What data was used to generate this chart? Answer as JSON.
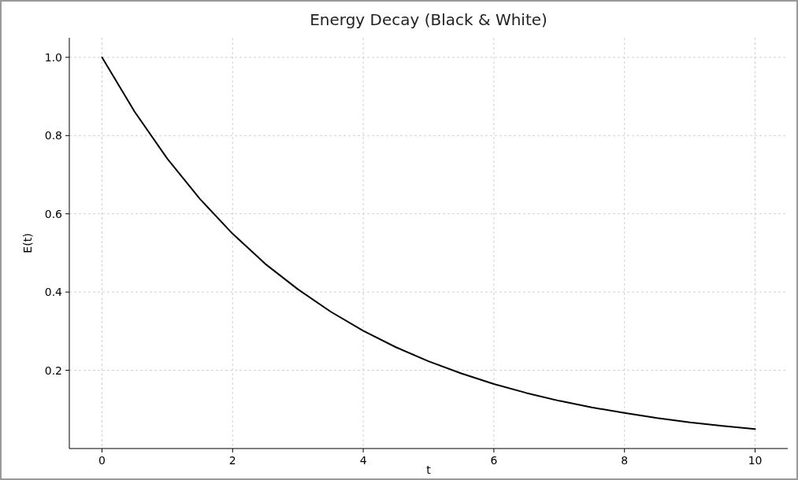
{
  "chart_data": {
    "type": "line",
    "title": "Energy Decay (Black & White)",
    "xlabel": "t",
    "ylabel": "E(t)",
    "x": [
      0,
      0.5,
      1,
      1.5,
      2,
      2.5,
      3,
      3.5,
      4,
      4.5,
      5,
      5.5,
      6,
      6.5,
      7,
      7.5,
      8,
      8.5,
      9,
      9.5,
      10
    ],
    "series": [
      {
        "color": "#000000",
        "values": [
          1,
          0.861,
          0.741,
          0.638,
          0.549,
          0.472,
          0.407,
          0.35,
          0.301,
          0.259,
          0.223,
          0.192,
          0.165,
          0.142,
          0.122,
          0.105,
          0.091,
          0.078,
          0.067,
          0.058,
          0.05
        ]
      }
    ],
    "xlim": [
      -0.5,
      10.5
    ],
    "xticks": [
      0,
      2,
      4,
      6,
      8,
      10
    ],
    "ylim": [
      0,
      1.05
    ],
    "yticks": [
      {
        "value": 0.2,
        "label": "0.2"
      },
      {
        "value": 0.4,
        "label": "0.4"
      },
      {
        "value": 0.6,
        "label": "0.6"
      },
      {
        "value": 0.8,
        "label": "0.8"
      },
      {
        "value": 1,
        "label": "1.0"
      }
    ],
    "grid": true,
    "line_style": "solid",
    "marker": "none"
  }
}
